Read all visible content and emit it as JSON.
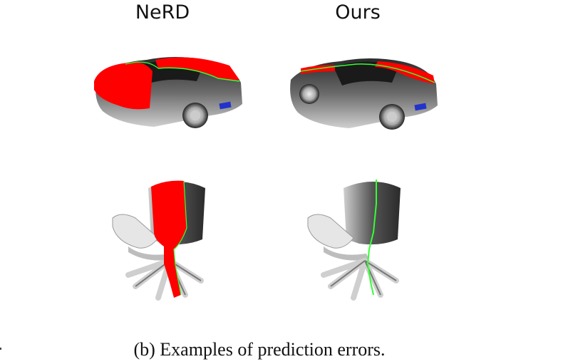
{
  "columns": [
    {
      "title": "NeRD"
    },
    {
      "title": "Ours"
    }
  ],
  "rows": [
    "car",
    "chair"
  ],
  "caption": "(b) Examples of prediction errors.",
  "colors": {
    "error": "#ff0000",
    "boundary": "#33ff33",
    "body_dark": "#3a3a3a",
    "body_light": "#d8d8d8",
    "accent_light": "#2233cc"
  }
}
